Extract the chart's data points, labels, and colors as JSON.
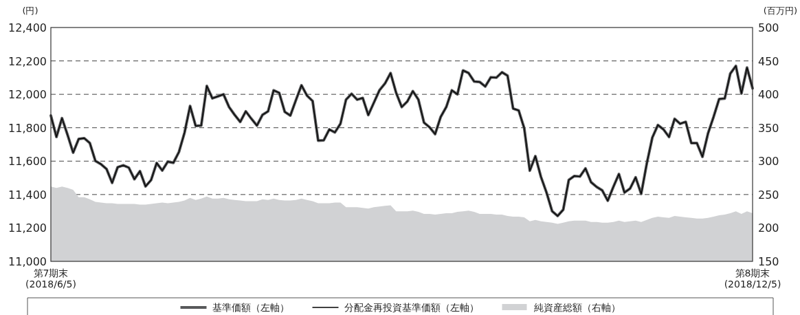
{
  "chart_data": {
    "type": "line",
    "ylabel": "(円)",
    "y2label": "(百万円)",
    "grid": "y",
    "legend": "bottom",
    "line_style": "solid",
    "categories": [
      "第7期末\n(2018/6/5)",
      null,
      null,
      null,
      null,
      null,
      null,
      null,
      null,
      null,
      null,
      null,
      null,
      null,
      null,
      null,
      null,
      null,
      null,
      null,
      null,
      null,
      null,
      null,
      null,
      null,
      null,
      null,
      null,
      null,
      null,
      null,
      null,
      null,
      null,
      null,
      null,
      null,
      null,
      null,
      null,
      null,
      null,
      null,
      null,
      null,
      null,
      null,
      null,
      null,
      null,
      null,
      null,
      null,
      null,
      null,
      null,
      null,
      null,
      null,
      null,
      null,
      null,
      null,
      null,
      null,
      null,
      null,
      null,
      null,
      null,
      null,
      null,
      null,
      null,
      null,
      null,
      null,
      null,
      null,
      null,
      null,
      null,
      null,
      null,
      null,
      null,
      null,
      null,
      null,
      null,
      null,
      null,
      null,
      null,
      null,
      null,
      null,
      null,
      null,
      null,
      null,
      null,
      null,
      null,
      null,
      null,
      null,
      null,
      null,
      null,
      null,
      null,
      null,
      null,
      null,
      null,
      null,
      null,
      null,
      null,
      null,
      null,
      null,
      null,
      null,
      "第8期末\n(2018/12/5)"
    ],
    "ylim": [
      11000,
      12400
    ],
    "yticks": [
      {
        "value": 11000,
        "label": "11,000"
      },
      {
        "value": 11200,
        "label": "11,200"
      },
      {
        "value": 11400,
        "label": "11,400"
      },
      {
        "value": 11600,
        "label": "11,600"
      },
      {
        "value": 11800,
        "label": "11,800"
      },
      {
        "value": 12000,
        "label": "12,000"
      },
      {
        "value": 12200,
        "label": "12,200"
      },
      {
        "value": 12400,
        "label": "12,400"
      }
    ],
    "y2lim": [
      150,
      500
    ],
    "y2ticks": [
      150,
      200,
      250,
      300,
      350,
      400,
      450,
      500
    ],
    "series": [
      {
        "name": "基準価額（左軸）",
        "color": "#58595b",
        "values": [
          11873,
          11745,
          11857,
          11757,
          11651,
          11733,
          11737,
          11708,
          11601,
          11582,
          11553,
          11470,
          11564,
          11575,
          11561,
          11492,
          11540,
          11449,
          11487,
          11589,
          11544,
          11597,
          11590,
          11655,
          11770,
          11930,
          11811,
          11813,
          12050,
          11976,
          11988,
          12000,
          11924,
          11877,
          11835,
          11898,
          11854,
          11813,
          11877,
          11898,
          12024,
          12009,
          11895,
          11873,
          11965,
          12054,
          11992,
          11960,
          11723,
          11725,
          11790,
          11772,
          11824,
          11968,
          12003,
          11968,
          11978,
          11876,
          11950,
          12024,
          12065,
          12127,
          12009,
          11924,
          11957,
          12019,
          11968,
          11831,
          11803,
          11762,
          11865,
          11924,
          12024,
          12000,
          12143,
          12128,
          12077,
          12074,
          12047,
          12102,
          12100,
          12132,
          12112,
          11915,
          11903,
          11797,
          11543,
          11630,
          11506,
          11412,
          11301,
          11272,
          11309,
          11487,
          11511,
          11508,
          11556,
          11474,
          11446,
          11425,
          11363,
          11446,
          11523,
          11412,
          11436,
          11503,
          11404,
          11585,
          11741,
          11816,
          11790,
          11745,
          11853,
          11824,
          11835,
          11708,
          11708,
          11626,
          11766,
          11865,
          11972,
          11975,
          12124,
          12170,
          12005,
          12160,
          12036
        ]
      },
      {
        "name": "分配金再投資基準価額（左軸）",
        "color": "#000000",
        "values": [
          11873,
          11745,
          11857,
          11757,
          11651,
          11733,
          11737,
          11708,
          11601,
          11582,
          11553,
          11470,
          11564,
          11575,
          11561,
          11492,
          11540,
          11449,
          11487,
          11589,
          11544,
          11597,
          11590,
          11655,
          11770,
          11930,
          11811,
          11813,
          12050,
          11976,
          11988,
          12000,
          11924,
          11877,
          11835,
          11898,
          11854,
          11813,
          11877,
          11898,
          12024,
          12009,
          11895,
          11873,
          11965,
          12054,
          11992,
          11960,
          11723,
          11725,
          11790,
          11772,
          11824,
          11968,
          12003,
          11968,
          11978,
          11876,
          11950,
          12024,
          12065,
          12127,
          12009,
          11924,
          11957,
          12019,
          11968,
          11831,
          11803,
          11762,
          11865,
          11924,
          12024,
          12000,
          12143,
          12128,
          12077,
          12074,
          12047,
          12102,
          12100,
          12132,
          12112,
          11915,
          11903,
          11797,
          11543,
          11630,
          11506,
          11412,
          11301,
          11272,
          11309,
          11487,
          11511,
          11508,
          11556,
          11474,
          11446,
          11425,
          11363,
          11446,
          11523,
          11412,
          11436,
          11503,
          11404,
          11585,
          11741,
          11816,
          11790,
          11745,
          11853,
          11824,
          11835,
          11708,
          11708,
          11626,
          11766,
          11865,
          11972,
          11975,
          12124,
          12170,
          12005,
          12160,
          12036
        ]
      },
      {
        "name": "純資産総額（右軸）",
        "type": "area",
        "axis": "y2",
        "color": "#d1d2d4",
        "values": [
          262,
          260,
          262,
          260,
          257,
          246,
          246,
          243,
          239,
          238,
          237,
          237,
          236,
          236,
          236,
          236,
          235,
          235,
          236,
          237,
          238,
          237,
          238,
          239,
          241,
          245,
          242,
          244,
          247,
          244,
          244,
          245,
          243,
          242,
          241,
          240,
          240,
          240,
          243,
          242,
          244,
          242,
          241,
          241,
          242,
          244,
          242,
          240,
          237,
          237,
          237,
          238,
          238,
          231,
          231,
          231,
          230,
          229,
          231,
          232,
          233,
          234,
          225,
          225,
          225,
          226,
          224,
          221,
          221,
          220,
          221,
          222,
          222,
          224,
          225,
          226,
          224,
          221,
          221,
          221,
          220,
          220,
          218,
          217,
          217,
          216,
          210,
          212,
          210,
          209,
          208,
          206,
          208,
          210,
          211,
          211,
          211,
          209,
          209,
          208,
          208,
          209,
          211,
          209,
          210,
          211,
          209,
          212,
          215,
          217,
          216,
          215,
          218,
          217,
          216,
          215,
          214,
          214,
          215,
          217,
          219,
          220,
          222,
          225,
          221,
          225,
          222
        ]
      }
    ]
  }
}
